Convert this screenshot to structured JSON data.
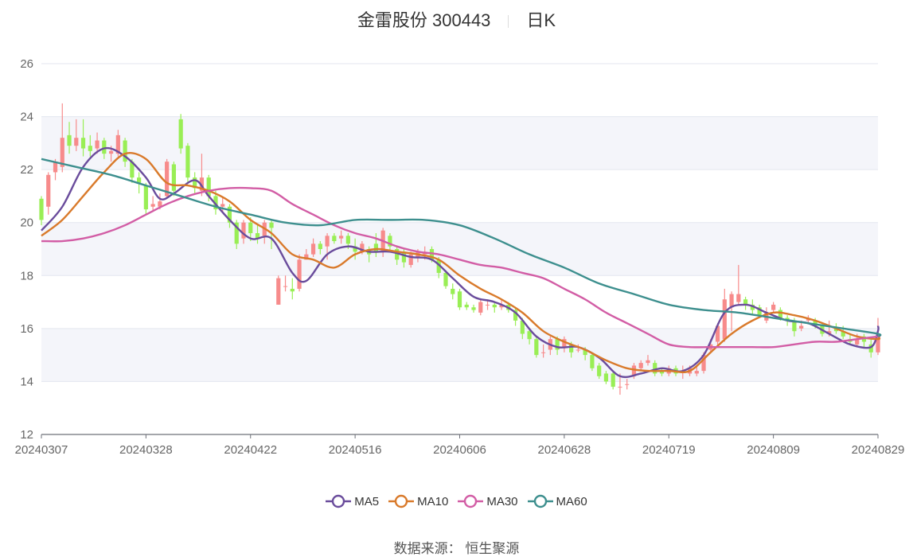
{
  "header": {
    "title": "金雷股份 300443",
    "period": "日K"
  },
  "source": "数据来源： 恒生聚源",
  "colors": {
    "up": "#f78b8b",
    "down": "#99ee55",
    "grid": "#e3e6ef",
    "band": "#f4f5fa"
  },
  "chart_data": {
    "type": "candlestick",
    "ylim": [
      12,
      26
    ],
    "yticks": [
      "12",
      "14",
      "16",
      "18",
      "20",
      "22",
      "24",
      "26"
    ],
    "xtick_labels": [
      "20240307",
      "20240328",
      "20240422",
      "20240516",
      "20240606",
      "20240628",
      "20240719",
      "20240809",
      "20240829"
    ],
    "xtick_indices": [
      0,
      15,
      30,
      45,
      60,
      75,
      90,
      105,
      120
    ],
    "n_days": 121,
    "candles": [
      [
        20.9,
        20.1,
        21.0,
        19.9
      ],
      [
        20.6,
        21.8,
        21.9,
        20.3
      ],
      [
        21.9,
        22.3,
        22.4,
        21.6
      ],
      [
        22.1,
        23.2,
        24.5,
        21.9
      ],
      [
        23.3,
        22.9,
        23.8,
        22.6
      ],
      [
        22.9,
        23.2,
        23.9,
        22.7
      ],
      [
        23.2,
        22.8,
        23.9,
        22.5
      ],
      [
        22.9,
        22.7,
        23.3,
        22.5
      ],
      [
        22.8,
        23.1,
        23.4,
        22.6
      ],
      [
        23.1,
        22.6,
        23.2,
        22.4
      ],
      [
        22.6,
        22.7,
        22.9,
        22.3
      ],
      [
        22.6,
        23.3,
        23.5,
        22.5
      ],
      [
        23.1,
        22.3,
        23.2,
        22.1
      ],
      [
        22.3,
        21.7,
        22.4,
        21.5
      ],
      [
        21.7,
        21.5,
        21.9,
        21.1
      ],
      [
        21.4,
        20.5,
        21.5,
        20.3
      ],
      [
        20.6,
        20.7,
        21.0,
        20.4
      ],
      [
        20.6,
        20.8,
        21.1,
        20.5
      ],
      [
        21.0,
        22.3,
        22.4,
        20.9
      ],
      [
        22.2,
        21.2,
        22.3,
        21.0
      ],
      [
        23.9,
        22.8,
        24.1,
        22.6
      ],
      [
        22.9,
        21.7,
        23.0,
        21.5
      ],
      [
        21.7,
        21.3,
        21.9,
        21.1
      ],
      [
        21.2,
        21.7,
        22.6,
        21.0
      ],
      [
        21.7,
        21.0,
        21.8,
        20.8
      ],
      [
        21.0,
        20.5,
        21.2,
        20.3
      ],
      [
        20.6,
        20.7,
        21.0,
        20.4
      ],
      [
        20.6,
        20.0,
        20.7,
        19.8
      ],
      [
        20.0,
        19.2,
        20.1,
        19.0
      ],
      [
        19.4,
        20.0,
        20.1,
        19.2
      ],
      [
        20.0,
        19.6,
        20.2,
        19.3
      ],
      [
        19.6,
        19.4,
        19.9,
        19.2
      ],
      [
        19.5,
        20.0,
        20.1,
        19.2
      ],
      [
        20.0,
        19.8,
        20.1,
        19.0
      ],
      [
        16.9,
        17.9,
        18.0,
        16.9
      ],
      [
        17.6,
        17.6,
        18.0,
        17.4
      ],
      [
        17.5,
        17.4,
        17.9,
        17.1
      ],
      [
        17.5,
        18.6,
        18.8,
        17.4
      ],
      [
        18.6,
        18.8,
        19.0,
        18.6
      ],
      [
        18.8,
        19.2,
        19.4,
        18.7
      ],
      [
        19.2,
        19.0,
        19.3,
        18.8
      ],
      [
        19.1,
        19.5,
        19.6,
        18.6
      ],
      [
        19.5,
        19.3,
        19.6,
        19.2
      ],
      [
        19.4,
        19.5,
        19.7,
        19.2
      ],
      [
        19.5,
        19.2,
        19.6,
        19.0
      ],
      [
        19.1,
        18.9,
        19.4,
        18.6
      ],
      [
        18.9,
        19.2,
        19.3,
        18.8
      ],
      [
        19.0,
        18.8,
        19.1,
        18.5
      ],
      [
        19.2,
        18.9,
        19.6,
        18.7
      ],
      [
        18.9,
        19.7,
        19.8,
        18.7
      ],
      [
        19.5,
        19.1,
        19.6,
        18.9
      ],
      [
        19.0,
        18.6,
        19.1,
        18.4
      ],
      [
        18.9,
        18.5,
        19.0,
        18.3
      ],
      [
        18.4,
        18.8,
        18.9,
        18.3
      ],
      [
        18.7,
        18.9,
        19.0,
        18.5
      ],
      [
        18.8,
        18.9,
        19.1,
        18.6
      ],
      [
        19.0,
        18.6,
        19.1,
        18.5
      ],
      [
        18.6,
        18.1,
        18.7,
        17.9
      ],
      [
        18.1,
        17.6,
        18.2,
        17.5
      ],
      [
        17.5,
        17.3,
        17.7,
        17.1
      ],
      [
        17.4,
        16.8,
        17.5,
        16.7
      ],
      [
        16.9,
        16.8,
        17.0,
        16.7
      ],
      [
        16.8,
        16.7,
        16.9,
        16.6
      ],
      [
        16.6,
        17.0,
        17.1,
        16.5
      ],
      [
        16.9,
        16.9,
        17.1,
        16.7
      ],
      [
        16.9,
        16.8,
        17.0,
        16.6
      ],
      [
        16.8,
        16.9,
        17.1,
        16.7
      ],
      [
        16.9,
        16.7,
        17.0,
        16.6
      ],
      [
        16.7,
        16.3,
        16.8,
        16.1
      ],
      [
        16.3,
        15.8,
        16.4,
        15.6
      ],
      [
        15.9,
        15.6,
        16.0,
        15.4
      ],
      [
        15.6,
        15.0,
        15.7,
        14.9
      ],
      [
        15.1,
        15.1,
        15.4,
        14.9
      ],
      [
        15.2,
        15.6,
        15.7,
        15.0
      ],
      [
        15.6,
        15.2,
        15.7,
        15.0
      ],
      [
        15.3,
        15.6,
        15.7,
        15.1
      ],
      [
        15.4,
        15.1,
        15.5,
        14.9
      ],
      [
        15.2,
        15.2,
        15.4,
        15.1
      ],
      [
        15.2,
        15.0,
        15.3,
        14.8
      ],
      [
        15.0,
        14.5,
        15.1,
        14.4
      ],
      [
        14.6,
        14.2,
        14.7,
        14.1
      ],
      [
        14.3,
        14.0,
        14.4,
        13.9
      ],
      [
        14.3,
        13.8,
        14.4,
        13.7
      ],
      [
        13.8,
        13.8,
        14.3,
        13.5
      ],
      [
        13.9,
        13.9,
        14.1,
        13.7
      ],
      [
        14.2,
        14.6,
        14.7,
        14.1
      ],
      [
        14.5,
        14.7,
        14.8,
        14.4
      ],
      [
        14.7,
        14.8,
        15.0,
        14.6
      ],
      [
        14.7,
        14.3,
        14.8,
        14.2
      ],
      [
        14.4,
        14.3,
        14.5,
        14.2
      ],
      [
        14.3,
        14.5,
        14.6,
        14.2
      ],
      [
        14.5,
        14.3,
        14.6,
        14.2
      ],
      [
        14.4,
        14.4,
        14.6,
        14.1
      ],
      [
        14.3,
        14.5,
        14.6,
        14.2
      ],
      [
        14.3,
        14.4,
        14.6,
        14.2
      ],
      [
        14.4,
        15.0,
        15.1,
        14.3
      ],
      [
        15.2,
        15.4,
        15.6,
        15.1
      ],
      [
        15.5,
        16.1,
        16.2,
        15.3
      ],
      [
        15.6,
        17.1,
        17.5,
        15.5
      ],
      [
        16.8,
        17.3,
        17.4,
        15.9
      ],
      [
        17.0,
        17.3,
        18.4,
        16.9
      ],
      [
        17.1,
        16.9,
        17.2,
        16.7
      ],
      [
        16.9,
        16.7,
        17.1,
        16.5
      ],
      [
        16.8,
        16.5,
        16.9,
        16.4
      ],
      [
        16.3,
        16.6,
        16.8,
        16.2
      ],
      [
        16.7,
        16.9,
        17.0,
        16.6
      ],
      [
        16.7,
        16.4,
        16.8,
        16.3
      ],
      [
        16.4,
        16.3,
        16.5,
        16.1
      ],
      [
        16.3,
        15.9,
        16.4,
        15.7
      ],
      [
        16.0,
        16.1,
        16.3,
        15.9
      ],
      [
        16.3,
        16.4,
        16.5,
        16.2
      ],
      [
        16.3,
        16.1,
        16.4,
        16.0
      ],
      [
        16.1,
        15.8,
        16.2,
        15.7
      ],
      [
        15.8,
        15.9,
        16.3,
        15.7
      ],
      [
        16.0,
        15.9,
        16.2,
        15.8
      ],
      [
        15.9,
        15.7,
        16.1,
        15.6
      ],
      [
        15.6,
        15.5,
        15.8,
        15.4
      ],
      [
        15.4,
        15.6,
        15.8,
        15.3
      ],
      [
        15.7,
        15.5,
        15.8,
        15.3
      ],
      [
        15.4,
        15.1,
        15.6,
        14.9
      ],
      [
        15.1,
        15.7,
        16.4,
        15.0
      ]
    ],
    "series": [
      {
        "name": "MA5",
        "color": "#6a4c9c",
        "values": [
          [
            0,
            19.7
          ],
          [
            3,
            20.6
          ],
          [
            6,
            22.1
          ],
          [
            9,
            22.8
          ],
          [
            12,
            22.5
          ],
          [
            15,
            21.7
          ],
          [
            17,
            20.9
          ],
          [
            19,
            21.1
          ],
          [
            22,
            21.6
          ],
          [
            24,
            21.0
          ],
          [
            27,
            20.1
          ],
          [
            30,
            19.4
          ],
          [
            33,
            19.4
          ],
          [
            36,
            18.1
          ],
          [
            38,
            17.8
          ],
          [
            41,
            18.8
          ],
          [
            44,
            19.1
          ],
          [
            47,
            18.9
          ],
          [
            50,
            18.9
          ],
          [
            53,
            18.7
          ],
          [
            56,
            18.6
          ],
          [
            59,
            17.9
          ],
          [
            62,
            17.2
          ],
          [
            65,
            17.0
          ],
          [
            68,
            16.6
          ],
          [
            71,
            15.7
          ],
          [
            74,
            15.3
          ],
          [
            77,
            15.3
          ],
          [
            80,
            14.9
          ],
          [
            83,
            14.2
          ],
          [
            86,
            14.3
          ],
          [
            89,
            14.5
          ],
          [
            92,
            14.4
          ],
          [
            95,
            15.0
          ],
          [
            98,
            16.6
          ],
          [
            101,
            16.9
          ],
          [
            104,
            16.6
          ],
          [
            107,
            16.3
          ],
          [
            110,
            16.2
          ],
          [
            113,
            15.8
          ],
          [
            116,
            15.4
          ],
          [
            119,
            15.3
          ],
          [
            121,
            15.9
          ],
          [
            122,
            16.1
          ]
        ]
      },
      {
        "name": "MA10",
        "color": "#d97a2b",
        "values": [
          [
            0,
            19.5
          ],
          [
            3,
            20.1
          ],
          [
            6,
            21.0
          ],
          [
            9,
            21.9
          ],
          [
            12,
            22.6
          ],
          [
            15,
            22.4
          ],
          [
            18,
            21.5
          ],
          [
            21,
            21.4
          ],
          [
            24,
            21.2
          ],
          [
            27,
            20.8
          ],
          [
            30,
            20.1
          ],
          [
            33,
            19.6
          ],
          [
            36,
            18.8
          ],
          [
            39,
            18.6
          ],
          [
            42,
            18.3
          ],
          [
            45,
            18.8
          ],
          [
            48,
            19.0
          ],
          [
            51,
            18.9
          ],
          [
            54,
            18.8
          ],
          [
            57,
            18.6
          ],
          [
            60,
            18.0
          ],
          [
            63,
            17.5
          ],
          [
            66,
            17.1
          ],
          [
            69,
            16.6
          ],
          [
            72,
            15.9
          ],
          [
            75,
            15.5
          ],
          [
            78,
            15.2
          ],
          [
            81,
            14.8
          ],
          [
            84,
            14.5
          ],
          [
            87,
            14.4
          ],
          [
            90,
            14.4
          ],
          [
            93,
            14.4
          ],
          [
            96,
            15.1
          ],
          [
            99,
            15.8
          ],
          [
            102,
            16.3
          ],
          [
            105,
            16.6
          ],
          [
            108,
            16.5
          ],
          [
            111,
            16.3
          ],
          [
            114,
            16.0
          ],
          [
            117,
            15.7
          ],
          [
            120,
            15.6
          ],
          [
            122,
            15.7
          ]
        ]
      },
      {
        "name": "MA30",
        "color": "#d25da5",
        "values": [
          [
            0,
            19.3
          ],
          [
            3,
            19.3
          ],
          [
            6,
            19.4
          ],
          [
            9,
            19.6
          ],
          [
            12,
            19.9
          ],
          [
            15,
            20.3
          ],
          [
            18,
            20.7
          ],
          [
            21,
            21.0
          ],
          [
            24,
            21.2
          ],
          [
            27,
            21.3
          ],
          [
            30,
            21.3
          ],
          [
            33,
            21.2
          ],
          [
            36,
            20.7
          ],
          [
            39,
            20.3
          ],
          [
            42,
            19.9
          ],
          [
            45,
            19.6
          ],
          [
            48,
            19.4
          ],
          [
            51,
            19.1
          ],
          [
            54,
            18.9
          ],
          [
            57,
            18.8
          ],
          [
            60,
            18.6
          ],
          [
            63,
            18.4
          ],
          [
            66,
            18.3
          ],
          [
            69,
            18.1
          ],
          [
            72,
            17.9
          ],
          [
            75,
            17.5
          ],
          [
            78,
            17.1
          ],
          [
            81,
            16.6
          ],
          [
            84,
            16.2
          ],
          [
            87,
            15.8
          ],
          [
            90,
            15.4
          ],
          [
            93,
            15.3
          ],
          [
            96,
            15.3
          ],
          [
            99,
            15.3
          ],
          [
            102,
            15.3
          ],
          [
            105,
            15.3
          ],
          [
            108,
            15.4
          ],
          [
            111,
            15.5
          ],
          [
            114,
            15.5
          ],
          [
            117,
            15.6
          ],
          [
            120,
            15.7
          ],
          [
            122,
            15.7
          ]
        ]
      },
      {
        "name": "MA60",
        "color": "#3d8f8e",
        "values": [
          [
            0,
            22.4
          ],
          [
            5,
            22.1
          ],
          [
            10,
            21.8
          ],
          [
            15,
            21.4
          ],
          [
            20,
            21.0
          ],
          [
            25,
            20.6
          ],
          [
            30,
            20.3
          ],
          [
            35,
            20.0
          ],
          [
            40,
            19.9
          ],
          [
            45,
            20.1
          ],
          [
            50,
            20.1
          ],
          [
            55,
            20.1
          ],
          [
            60,
            19.9
          ],
          [
            65,
            19.4
          ],
          [
            70,
            18.8
          ],
          [
            75,
            18.3
          ],
          [
            80,
            17.7
          ],
          [
            85,
            17.3
          ],
          [
            90,
            16.9
          ],
          [
            95,
            16.7
          ],
          [
            100,
            16.6
          ],
          [
            105,
            16.4
          ],
          [
            110,
            16.2
          ],
          [
            115,
            16.0
          ],
          [
            120,
            15.8
          ],
          [
            122,
            15.7
          ]
        ]
      }
    ]
  }
}
